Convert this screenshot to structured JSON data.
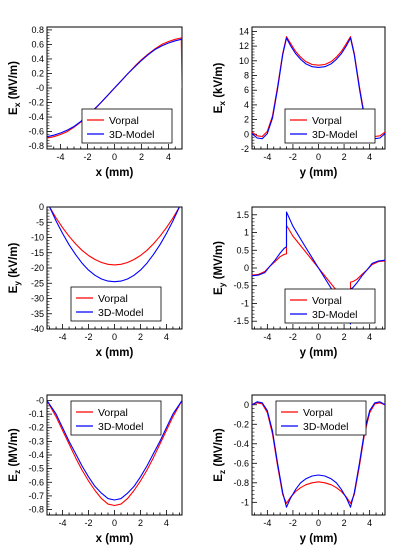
{
  "colors": {
    "vorpal": "#ff0000",
    "model": "#0000ff",
    "axis": "#000000"
  },
  "chart_data": [
    {
      "type": "line",
      "xlabel": "x (mm)",
      "ylabel_main": "E",
      "ylabel_sub": "x",
      "ylabel_unit": "(MV/m)",
      "xlim": [
        -5,
        5
      ],
      "ylim": [
        -0.84,
        0.84
      ],
      "xticks": [
        -4,
        -2,
        0,
        2,
        4
      ],
      "xtick_labels": [
        "-4",
        "-2",
        "0",
        "2",
        "4"
      ],
      "yticks": [
        -0.8,
        -0.6,
        -0.4,
        -0.2,
        0,
        0.2,
        0.4,
        0.6,
        0.8
      ],
      "ytick_labels": [
        "-0.8",
        "-0.6",
        "-0.4",
        "-0.2",
        "-0",
        "0.2",
        "0.4",
        "0.6",
        "0.8"
      ],
      "legend": {
        "position": "bottom-right",
        "entries": [
          "Vorpal",
          "3D-Model"
        ]
      },
      "x": [
        -5,
        -4.5,
        -4,
        -3.5,
        -3,
        -2.5,
        -2,
        -1.5,
        -1,
        -0.5,
        0,
        0.5,
        1,
        1.5,
        2,
        2.5,
        3,
        3.5,
        4,
        4.5,
        4.95,
        5
      ],
      "series": [
        {
          "name": "Vorpal",
          "color": "#ff0000",
          "values": [
            -0.69,
            -0.67,
            -0.64,
            -0.6,
            -0.54,
            -0.47,
            -0.39,
            -0.3,
            -0.2,
            -0.1,
            0,
            0.1,
            0.2,
            0.3,
            0.39,
            0.47,
            0.54,
            0.6,
            0.64,
            0.67,
            0.69,
            0.0
          ]
        },
        {
          "name": "3D-Model",
          "color": "#0000ff",
          "values": [
            -0.67,
            -0.65,
            -0.62,
            -0.58,
            -0.53,
            -0.46,
            -0.38,
            -0.29,
            -0.2,
            -0.1,
            0,
            0.1,
            0.2,
            0.29,
            0.38,
            0.46,
            0.53,
            0.58,
            0.62,
            0.65,
            0.67,
            0.67
          ]
        }
      ]
    },
    {
      "type": "line",
      "xlabel": "y (mm)",
      "ylabel_main": "E",
      "ylabel_sub": "x",
      "ylabel_unit": "(kV/m)",
      "xlim": [
        -5.2,
        5.2
      ],
      "ylim": [
        -2,
        14.6
      ],
      "xticks": [
        -4,
        -2,
        0,
        2,
        4
      ],
      "xtick_labels": [
        "-4",
        "-2",
        "0",
        "2",
        "4"
      ],
      "yticks": [
        -2,
        0,
        2,
        4,
        6,
        8,
        10,
        12,
        14
      ],
      "ytick_labels": [
        "-2",
        "0",
        "2",
        "4",
        "6",
        "8",
        "10",
        "12",
        "14"
      ],
      "legend": {
        "position": "bottom-right",
        "entries": [
          "Vorpal",
          "3D-Model"
        ]
      },
      "x": [
        -5.2,
        -4.8,
        -4.4,
        -4,
        -3.6,
        -3.2,
        -2.8,
        -2.5,
        -2.2,
        -1.8,
        -1.4,
        -1,
        -0.5,
        0,
        0.5,
        1,
        1.4,
        1.8,
        2.2,
        2.5,
        2.8,
        3.2,
        3.6,
        4,
        4.4,
        4.8,
        5.2
      ],
      "series": [
        {
          "name": "Vorpal",
          "color": "#ff0000",
          "values": [
            0.3,
            -0.2,
            -0.3,
            0.4,
            2.5,
            6.5,
            11,
            13.3,
            12.4,
            11.3,
            10.5,
            9.9,
            9.5,
            9.4,
            9.5,
            9.9,
            10.5,
            11.3,
            12.4,
            13.3,
            11,
            6.5,
            2.5,
            0.4,
            -0.3,
            -0.2,
            0.3
          ]
        },
        {
          "name": "3D-Model",
          "color": "#0000ff",
          "values": [
            0.1,
            -0.5,
            -0.6,
            0.1,
            2.2,
            6.2,
            10.8,
            13.1,
            12.1,
            11,
            10.2,
            9.6,
            9.2,
            9.1,
            9.2,
            9.6,
            10.2,
            11,
            12.1,
            13.1,
            10.8,
            6.2,
            2.2,
            0.1,
            -0.6,
            -0.5,
            0.1
          ]
        }
      ]
    },
    {
      "type": "line",
      "xlabel": "x (mm)",
      "ylabel_main": "E",
      "ylabel_sub": "y",
      "ylabel_unit": "(kV/m)",
      "xlim": [
        -5.2,
        5.2
      ],
      "ylim": [
        -40,
        0
      ],
      "xticks": [
        -4,
        -2,
        0,
        2,
        4
      ],
      "xtick_labels": [
        "-4",
        "-2",
        "0",
        "2",
        "4"
      ],
      "yticks": [
        -40,
        -35,
        -30,
        -25,
        -20,
        -15,
        -10,
        -5,
        0
      ],
      "ytick_labels": [
        "-40",
        "-35",
        "-30",
        "-25",
        "-20",
        "-15",
        "-10",
        "-5",
        "0"
      ],
      "legend": {
        "position": "bottom-center",
        "entries": [
          "Vorpal",
          "3D-Model"
        ]
      },
      "x": [
        -5,
        -4.5,
        -4,
        -3.5,
        -3,
        -2.5,
        -2,
        -1.5,
        -1,
        -0.5,
        0,
        0.5,
        1,
        1.5,
        2,
        2.5,
        3,
        3.5,
        4,
        4.5,
        5
      ],
      "series": [
        {
          "name": "Vorpal",
          "color": "#ff0000",
          "values": [
            0,
            -3.6,
            -6.8,
            -9.6,
            -12.1,
            -14.2,
            -15.9,
            -17.2,
            -18.2,
            -18.8,
            -19,
            -18.8,
            -18.2,
            -17.2,
            -15.9,
            -14.2,
            -12.1,
            -9.6,
            -6.8,
            -3.6,
            0
          ]
        },
        {
          "name": "3D-Model",
          "color": "#0000ff",
          "values": [
            0,
            -4.6,
            -8.7,
            -12.4,
            -15.6,
            -18.4,
            -20.7,
            -22.4,
            -23.6,
            -24.3,
            -24.5,
            -24.3,
            -23.6,
            -22.4,
            -20.7,
            -18.4,
            -15.6,
            -12.4,
            -8.7,
            -4.6,
            0
          ]
        }
      ]
    },
    {
      "type": "line",
      "xlabel": "y (mm)",
      "ylabel_main": "E",
      "ylabel_sub": "y",
      "ylabel_unit": "(MV/m)",
      "xlim": [
        -5.2,
        5.2
      ],
      "ylim": [
        -1.72,
        1.72
      ],
      "xticks": [
        -4,
        -2,
        0,
        2,
        4
      ],
      "xtick_labels": [
        "-4",
        "-2",
        "0",
        "2",
        "4"
      ],
      "yticks": [
        -1.5,
        -1,
        -0.5,
        0,
        0.5,
        1,
        1.5
      ],
      "ytick_labels": [
        "-1.5",
        "-1",
        "-0.5",
        "0",
        "0.5",
        "1",
        "1.5"
      ],
      "legend": {
        "position": "bottom-right",
        "entries": [
          "Vorpal",
          "3D-Model"
        ]
      },
      "x": [
        -5.2,
        -4.7,
        -4.2,
        -3.8,
        -3.4,
        -3.0,
        -2.7,
        -2.5,
        -2.5,
        -2.0,
        -1.0,
        0,
        1.0,
        2.0,
        2.5,
        2.5,
        2.7,
        3.0,
        3.4,
        3.8,
        4.2,
        4.7,
        5.2
      ],
      "series": [
        {
          "name": "Vorpal",
          "color": "#ff0000",
          "values": [
            -0.2,
            -0.18,
            -0.1,
            0.05,
            0.18,
            0.32,
            0.38,
            0.4,
            1.2,
            0.9,
            0.45,
            0,
            -0.45,
            -0.9,
            -1.2,
            -0.4,
            -0.38,
            -0.32,
            -0.18,
            -0.05,
            0.1,
            0.18,
            0.2
          ]
        },
        {
          "name": "3D-Model",
          "color": "#0000ff",
          "values": [
            -0.22,
            -0.2,
            -0.13,
            0.05,
            0.22,
            0.42,
            0.55,
            0.6,
            1.58,
            1.18,
            0.58,
            0,
            -0.58,
            -1.18,
            -1.58,
            -0.6,
            -0.55,
            -0.42,
            -0.22,
            -0.05,
            0.13,
            0.2,
            0.22
          ]
        }
      ]
    },
    {
      "type": "line",
      "xlabel": "x (mm)",
      "ylabel_main": "E",
      "ylabel_sub": "z",
      "ylabel_unit": "(MV/m)",
      "xlim": [
        -5.2,
        5.2
      ],
      "ylim": [
        -0.84,
        0.04
      ],
      "xticks": [
        -4,
        -2,
        0,
        2,
        4
      ],
      "xtick_labels": [
        "-4",
        "-2",
        "0",
        "2",
        "4"
      ],
      "yticks": [
        -0.8,
        -0.7,
        -0.6,
        -0.5,
        -0.4,
        -0.3,
        -0.2,
        -0.1,
        0
      ],
      "ytick_labels": [
        "-0.8",
        "-0.7",
        "-0.6",
        "-0.5",
        "-0.4",
        "-0.3",
        "-0.2",
        "-0.1",
        "-0"
      ],
      "legend": {
        "position": "top-center",
        "entries": [
          "Vorpal",
          "3D-Model"
        ]
      },
      "x": [
        -5.2,
        -4.5,
        -4,
        -3.5,
        -3,
        -2.5,
        -2,
        -1.5,
        -1,
        -0.5,
        0,
        0.5,
        1,
        1.5,
        2,
        2.5,
        3,
        3.5,
        4,
        4.5,
        5.2
      ],
      "series": [
        {
          "name": "Vorpal",
          "color": "#ff0000",
          "values": [
            0,
            -0.12,
            -0.22,
            -0.32,
            -0.42,
            -0.51,
            -0.59,
            -0.66,
            -0.72,
            -0.76,
            -0.77,
            -0.76,
            -0.72,
            -0.66,
            -0.59,
            -0.51,
            -0.42,
            -0.32,
            -0.22,
            -0.12,
            0
          ]
        },
        {
          "name": "3D-Model",
          "color": "#0000ff",
          "values": [
            0,
            -0.1,
            -0.2,
            -0.3,
            -0.39,
            -0.48,
            -0.56,
            -0.63,
            -0.68,
            -0.72,
            -0.73,
            -0.72,
            -0.68,
            -0.63,
            -0.56,
            -0.48,
            -0.39,
            -0.3,
            -0.2,
            -0.1,
            0
          ]
        }
      ]
    },
    {
      "type": "line",
      "xlabel": "y (mm)",
      "ylabel_main": "E",
      "ylabel_sub": "z",
      "ylabel_unit": "(MV/m)",
      "xlim": [
        -5.2,
        5.2
      ],
      "ylim": [
        -1.13,
        0.1
      ],
      "xticks": [
        -4,
        -2,
        0,
        2,
        4
      ],
      "xtick_labels": [
        "-4",
        "-2",
        "0",
        "2",
        "4"
      ],
      "yticks": [
        -1,
        -0.8,
        -0.6,
        -0.4,
        -0.2,
        0
      ],
      "ytick_labels": [
        "-1",
        "-0.8",
        "-0.6",
        "-0.4",
        "-0.2",
        "0"
      ],
      "legend": {
        "position": "top-center",
        "entries": [
          "Vorpal",
          "3D-Model"
        ]
      },
      "x": [
        -5.2,
        -4.8,
        -4.4,
        -4,
        -3.6,
        -3.2,
        -2.8,
        -2.5,
        -2.2,
        -1.8,
        -1.4,
        -1,
        -0.5,
        0,
        0.5,
        1,
        1.4,
        1.8,
        2.2,
        2.5,
        2.8,
        3.2,
        3.6,
        4,
        4.4,
        4.8,
        5.2
      ],
      "series": [
        {
          "name": "Vorpal",
          "color": "#ff0000",
          "values": [
            0,
            0.02,
            0.01,
            -0.08,
            -0.3,
            -0.63,
            -0.92,
            -1.01,
            -0.95,
            -0.89,
            -0.85,
            -0.82,
            -0.8,
            -0.79,
            -0.8,
            -0.82,
            -0.85,
            -0.89,
            -0.95,
            -1.01,
            -0.92,
            -0.63,
            -0.3,
            -0.08,
            0.01,
            0.02,
            0
          ]
        },
        {
          "name": "3D-Model",
          "color": "#0000ff",
          "values": [
            0,
            0.03,
            0.02,
            -0.06,
            -0.27,
            -0.6,
            -0.9,
            -1.05,
            -0.96,
            -0.87,
            -0.8,
            -0.76,
            -0.73,
            -0.72,
            -0.73,
            -0.76,
            -0.8,
            -0.87,
            -0.96,
            -1.05,
            -0.9,
            -0.6,
            -0.27,
            -0.06,
            0.02,
            0.03,
            0
          ]
        }
      ]
    }
  ]
}
